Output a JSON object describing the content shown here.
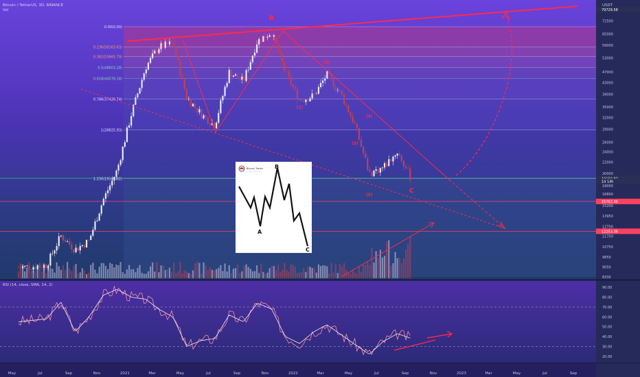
{
  "header": {
    "symbol": "Bitcoin / TetherUS, 3D, BINANCE",
    "volume_label": "Vol",
    "currency": "USDT"
  },
  "rsi_header": "RSI (14, close, SMA, 14, 2)",
  "colors": {
    "bg_top": "#5c3bd0",
    "bg_bottom": "#1e2a66",
    "trend": "#ff2a4a",
    "hline_green": "#3fbf8a",
    "candle_up": "#e8e8f0",
    "candle_down": "#c0405a",
    "rsi_line": "#ff8fa0"
  },
  "chart_data": [
    {
      "type": "line",
      "title": "Bitcoin / TetherUS, 3D, BINANCE",
      "y_axis": {
        "scale": "log",
        "ticks": [
          79729.58,
          72500,
          65000,
          59000,
          53000,
          47000,
          43000,
          39000,
          35000,
          32000,
          29000,
          26000,
          24000,
          22000,
          20000,
          18000,
          16800,
          15200,
          13950,
          12750,
          11750,
          10750,
          9850,
          9050,
          8330
        ]
      },
      "x_axis": {
        "ticks": [
          "May",
          "Jul",
          "Sep",
          "Nov",
          "2021",
          "Mar",
          "May",
          "Jul",
          "Sep",
          "Nov",
          "2022",
          "Mar",
          "May",
          "Jul",
          "Sep",
          "Nov",
          "2023",
          "Mar",
          "May",
          "Jul",
          "Sep"
        ]
      },
      "price_path": [
        [
          "2020-05",
          9000
        ],
        [
          "2020-07",
          9200
        ],
        [
          "2020-08",
          11800
        ],
        [
          "2020-09",
          10500
        ],
        [
          "2020-10",
          11300
        ],
        [
          "2020-11",
          16000
        ],
        [
          "2020-12",
          20500
        ],
        [
          "2021-01",
          33000
        ],
        [
          "2021-02",
          49000
        ],
        [
          "2021-03",
          58000
        ],
        [
          "2021-04",
          60000
        ],
        [
          "2021-05",
          38000
        ],
        [
          "2021-06",
          33000
        ],
        [
          "2021-07",
          30000
        ],
        [
          "2021-08",
          47000
        ],
        [
          "2021-09",
          43500
        ],
        [
          "2021-10",
          61000
        ],
        [
          "2021-11",
          66000
        ],
        [
          "2021-12",
          47000
        ],
        [
          "2022-01",
          37000
        ],
        [
          "2022-02",
          38500
        ],
        [
          "2022-03",
          46000
        ],
        [
          "2022-04",
          39000
        ],
        [
          "2022-05",
          30000
        ],
        [
          "2022-06",
          20000
        ],
        [
          "2022-07",
          21000
        ],
        [
          "2022-08",
          24000
        ],
        [
          "2022-09",
          19000
        ]
      ],
      "fib_levels": [
        {
          "label": "0.00(0.00)",
          "price": 69000
        },
        {
          "label": "0.236(58163.63)",
          "price": 58164
        },
        {
          "label": "0.382(53665.79)",
          "price": 53666
        },
        {
          "label": "0.5(48803.28)",
          "price": 48803
        },
        {
          "label": "0.618(44578.18)",
          "price": 44578
        },
        {
          "label": "0.786(37426.74)",
          "price": 37427
        },
        {
          "label": "1(28825.93)",
          "price": 28826
        },
        {
          "label": "1.236(19145.92)",
          "price": 19146
        }
      ],
      "price_tags": [
        {
          "label": "79729.58",
          "price": 79729.58,
          "color": "#2a2f55"
        },
        {
          "label": "19179.40",
          "price": 19179.4,
          "color": "#2a2f55"
        },
        {
          "label": "BTCUSDT",
          "price": 19000,
          "color": "#2a2f55"
        },
        {
          "label": "19150.82",
          "price": 19150.82,
          "color": "#2a2f55"
        },
        {
          "label": "1d 14h",
          "price": 18700,
          "color": "#2a2f55"
        },
        {
          "label": "15762.36",
          "price": 15762.36,
          "color": "#ff4060"
        },
        {
          "label": "12253.36",
          "price": 12253.36,
          "color": "#ff4060"
        }
      ],
      "hlines": [
        {
          "price": 19179.4,
          "color": "#3fbf8a"
        },
        {
          "price": 15762.36,
          "color": "#ff4060"
        },
        {
          "price": 12253.36,
          "color": "#ff4060"
        }
      ],
      "wave_labels": [
        {
          "label": "B",
          "date": "2021-11",
          "price": 73000
        },
        {
          "label": "(1)",
          "date": "2022-01",
          "price": 34500
        },
        {
          "label": "(2)",
          "date": "2022-03",
          "price": 50500
        },
        {
          "label": "(3)",
          "date": "2022-05",
          "price": 25500
        },
        {
          "label": "(4)",
          "date": "2022-06",
          "price": 32000
        },
        {
          "label": "(5)",
          "date": "2022-06",
          "price": 16500
        },
        {
          "label": "C",
          "date": "2022-09",
          "price": 17000
        }
      ]
    },
    {
      "type": "line",
      "title": "RSI (14, close, SMA, 14, 2)",
      "y_axis": {
        "ticks": [
          90,
          80,
          70,
          60,
          50,
          40,
          30,
          20
        ]
      },
      "rsi_path": [
        [
          "2020-05",
          55
        ],
        [
          "2020-07",
          58
        ],
        [
          "2020-08",
          75
        ],
        [
          "2020-09",
          45
        ],
        [
          "2020-10",
          60
        ],
        [
          "2020-11",
          82
        ],
        [
          "2020-12",
          88
        ],
        [
          "2021-01",
          80
        ],
        [
          "2021-02",
          78
        ],
        [
          "2021-03",
          68
        ],
        [
          "2021-04",
          60
        ],
        [
          "2021-05",
          30
        ],
        [
          "2021-06",
          36
        ],
        [
          "2021-07",
          38
        ],
        [
          "2021-08",
          62
        ],
        [
          "2021-09",
          55
        ],
        [
          "2021-10",
          74
        ],
        [
          "2021-11",
          68
        ],
        [
          "2021-12",
          40
        ],
        [
          "2022-01",
          33
        ],
        [
          "2022-02",
          45
        ],
        [
          "2022-03",
          52
        ],
        [
          "2022-04",
          42
        ],
        [
          "2022-05",
          32
        ],
        [
          "2022-06",
          22
        ],
        [
          "2022-07",
          35
        ],
        [
          "2022-08",
          43
        ],
        [
          "2022-09",
          38
        ]
      ]
    }
  ],
  "inset": {
    "logo_caption": "Bitcoin Trader",
    "labels": {
      "a": "A",
      "b": "B",
      "c": "C"
    }
  }
}
